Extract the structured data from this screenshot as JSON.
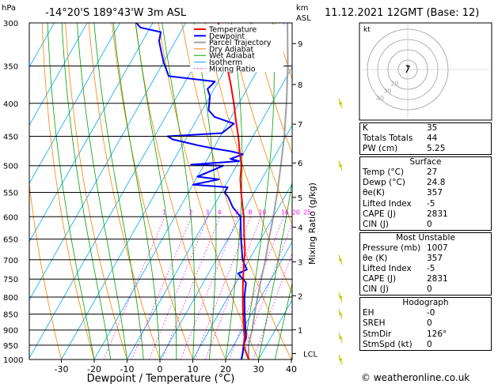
{
  "header": {
    "location": "-14°20'S  189°43'W  3m  ASL",
    "datetime": "11.12.2021  12GMT  (Base: 12)"
  },
  "chart_data": {
    "type": "skew-t",
    "pressure_unit": "hPa",
    "height_unit_top": "km",
    "height_unit_bottom": "ASL",
    "xlabel": "Dewpoint / Temperature (°C)",
    "mixing_ratio_label": "Mixing Ratio (g/kg)",
    "pressure_ticks": [
      300,
      350,
      400,
      450,
      500,
      550,
      600,
      650,
      700,
      750,
      800,
      850,
      900,
      950,
      1000
    ],
    "temp_ticks": [
      -30,
      -20,
      -10,
      0,
      10,
      20,
      30,
      40
    ],
    "xlim": [
      -35,
      40
    ],
    "ylim": [
      1000,
      300
    ],
    "height_ticks": [
      {
        "label": "9",
        "p": 323
      },
      {
        "label": "8",
        "p": 374
      },
      {
        "label": "7",
        "p": 431
      },
      {
        "label": "6",
        "p": 495
      },
      {
        "label": "5",
        "p": 560
      },
      {
        "label": "4",
        "p": 623
      },
      {
        "label": "3",
        "p": 705
      },
      {
        "label": "2",
        "p": 796
      },
      {
        "label": "1",
        "p": 899
      },
      {
        "label": "LCL",
        "p": 979
      }
    ],
    "mixing_ratio_values": [
      "1",
      "2",
      "3",
      "4",
      "6",
      "8",
      "10",
      "16",
      "20",
      "25"
    ],
    "mixing_ratio_numbers": [
      1,
      2,
      3,
      4,
      6,
      8,
      10,
      16,
      20,
      25
    ],
    "legend": [
      "Temperature",
      "Dewpoint",
      "Parcel Trajectory",
      "Dry Adiabat",
      "Wet Adiabat",
      "Isotherm",
      "Mixing Ratio"
    ],
    "temperature": [
      [
        1000,
        27
      ],
      [
        975,
        25
      ],
      [
        950,
        23
      ],
      [
        925,
        22
      ],
      [
        900,
        20.5
      ],
      [
        875,
        19
      ],
      [
        850,
        17.5
      ],
      [
        825,
        16
      ],
      [
        800,
        14.5
      ],
      [
        775,
        13
      ],
      [
        750,
        11.5
      ],
      [
        725,
        10
      ],
      [
        700,
        8.5
      ],
      [
        675,
        7
      ],
      [
        650,
        5
      ],
      [
        625,
        3
      ],
      [
        600,
        1
      ],
      [
        575,
        -1.5
      ],
      [
        550,
        -4
      ],
      [
        525,
        -6.5
      ],
      [
        500,
        -8.5
      ],
      [
        475,
        -11.5
      ],
      [
        450,
        -14.5
      ],
      [
        425,
        -18
      ],
      [
        400,
        -21.5
      ],
      [
        375,
        -25.5
      ],
      [
        350,
        -30
      ],
      [
        325,
        -35
      ],
      [
        300,
        -40
      ]
    ],
    "dewpoint": [
      [
        1000,
        24.8
      ],
      [
        975,
        24
      ],
      [
        950,
        23
      ],
      [
        925,
        22.5
      ],
      [
        900,
        21
      ],
      [
        850,
        18
      ],
      [
        800,
        15
      ],
      [
        760,
        13
      ],
      [
        735,
        9
      ],
      [
        725,
        11
      ],
      [
        700,
        8
      ],
      [
        650,
        4
      ],
      [
        600,
        0
      ],
      [
        580,
        -4
      ],
      [
        560,
        -7
      ],
      [
        550,
        -9
      ],
      [
        540,
        -9
      ],
      [
        535,
        -20
      ],
      [
        525,
        -13
      ],
      [
        520,
        -20
      ],
      [
        500,
        -14
      ],
      [
        498,
        -24
      ],
      [
        492,
        -10
      ],
      [
        488,
        -13
      ],
      [
        480,
        -10
      ],
      [
        475,
        -14
      ],
      [
        470,
        -20
      ],
      [
        465,
        -25
      ],
      [
        455,
        -34
      ],
      [
        450,
        -36
      ],
      [
        445,
        -20
      ],
      [
        430,
        -18
      ],
      [
        420,
        -25
      ],
      [
        410,
        -28
      ],
      [
        400,
        -29
      ],
      [
        390,
        -30
      ],
      [
        380,
        -32
      ],
      [
        370,
        -31
      ],
      [
        363,
        -46
      ],
      [
        345,
        -50
      ],
      [
        330,
        -53
      ],
      [
        320,
        -55
      ],
      [
        310,
        -56
      ],
      [
        305,
        -63
      ],
      [
        300,
        -65
      ]
    ],
    "parcel": [
      [
        1000,
        27
      ],
      [
        950,
        24.5
      ],
      [
        900,
        23
      ],
      [
        850,
        21
      ],
      [
        800,
        19
      ],
      [
        750,
        17
      ],
      [
        700,
        15
      ],
      [
        650,
        12.5
      ],
      [
        600,
        10
      ],
      [
        550,
        7
      ],
      [
        500,
        3.5
      ],
      [
        450,
        -0.5
      ],
      [
        400,
        -5.5
      ],
      [
        350,
        -11.5
      ],
      [
        300,
        -19
      ]
    ],
    "wind_barbs_p": [
      1000,
      925,
      850,
      800,
      700,
      500,
      400
    ]
  },
  "hodograph": {
    "unit": "kt",
    "rings": [
      "10",
      "20",
      "30",
      "40"
    ],
    "rings_drawn": [
      "10",
      "20",
      "30",
      "40"
    ]
  },
  "indices": [
    {
      "k": "K",
      "v": "35"
    },
    {
      "k": "Totals Totals",
      "v": "44"
    },
    {
      "k": "PW (cm)",
      "v": "5.25"
    }
  ],
  "surface": {
    "title": "Surface",
    "rows": [
      {
        "k": "Temp (°C)",
        "v": "27"
      },
      {
        "k": "Dewp (°C)",
        "v": "24.8"
      },
      {
        "k": "θe(K)",
        "v": "357"
      },
      {
        "k": "Lifted Index",
        "v": "-5"
      },
      {
        "k": "CAPE (J)",
        "v": "2831"
      },
      {
        "k": "CIN (J)",
        "v": "0"
      }
    ]
  },
  "most_unstable": {
    "title": "Most Unstable",
    "rows": [
      {
        "k": "Pressure (mb)",
        "v": "1007"
      },
      {
        "k": "θe (K)",
        "v": "357"
      },
      {
        "k": "Lifted Index",
        "v": "-5"
      },
      {
        "k": "CAPE (J)",
        "v": "2831"
      },
      {
        "k": "CIN (J)",
        "v": "0"
      }
    ]
  },
  "hodograph_table": {
    "title": "Hodograph",
    "rows": [
      {
        "k": "EH",
        "v": "-0"
      },
      {
        "k": "SREH",
        "v": "0"
      },
      {
        "k": "StmDir",
        "v": "126°"
      },
      {
        "k": "StmSpd (kt)",
        "v": "0"
      }
    ]
  },
  "footer": "© weatheronline.co.uk",
  "colors": {
    "temperature": "#ff0000",
    "dewpoint": "#0000ff",
    "parcel": "#a0a0a0",
    "dry_adiabat": "#ff8000",
    "wet_adiabat": "#00a000",
    "isotherm": "#00aaff",
    "mixing_ratio": "#ff00ff"
  }
}
